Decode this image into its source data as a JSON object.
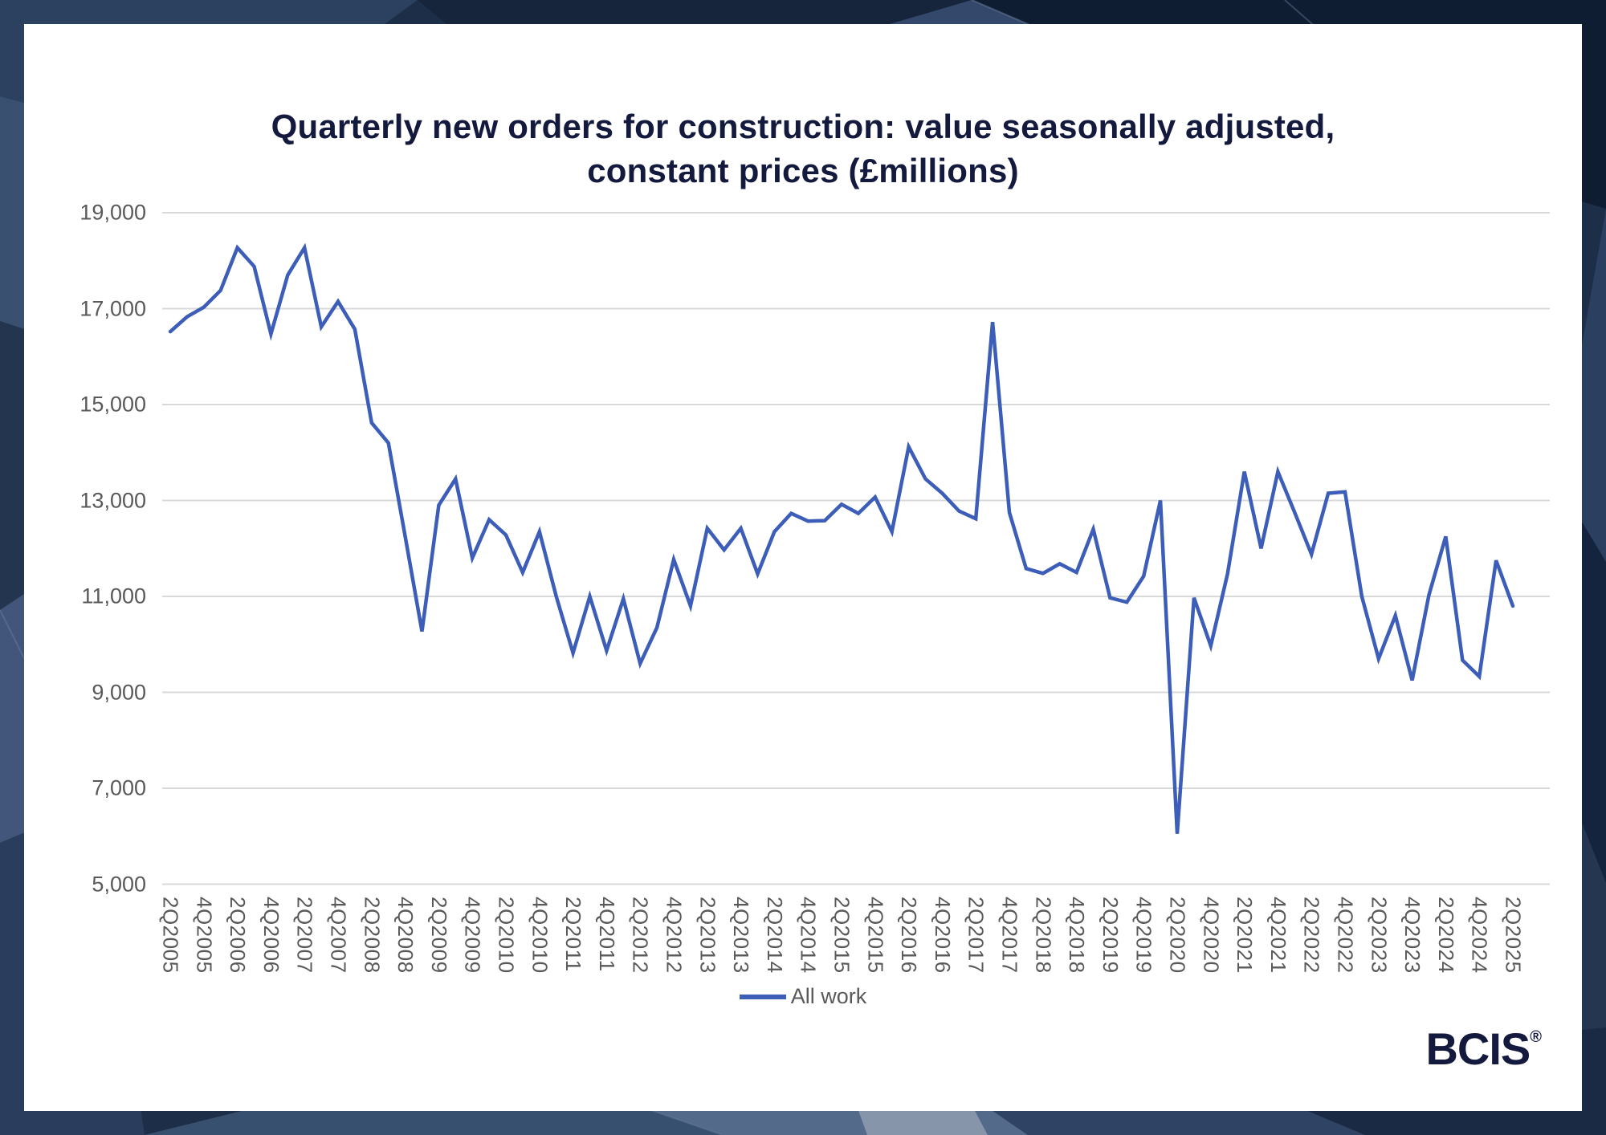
{
  "title": {
    "line1": "Quarterly new orders for construction: value seasonally adjusted,",
    "line2": "constant prices (£millions)"
  },
  "legend": {
    "label": "All work"
  },
  "logo": {
    "text": "BCIS",
    "registered": "®"
  },
  "colors": {
    "line": "#3c5db8",
    "title_text": "#141a3d",
    "axis_text": "#595959",
    "gridline": "#d9d9d9",
    "card_bg": "#ffffff",
    "page_bg": "#1d2e49",
    "logo_text": "#131a3e"
  },
  "chart_data": {
    "type": "line",
    "title": "Quarterly new orders for construction: value seasonally adjusted, constant prices (£millions)",
    "xlabel": "",
    "ylabel": "",
    "ylim": [
      5000,
      19000
    ],
    "ytick_step": 2000,
    "y_tick_labels": [
      "19,000",
      "17,000",
      "15,000",
      "13,000",
      "11,000",
      "9,000",
      "7,000",
      "5,000"
    ],
    "grid": true,
    "legend_position": "bottom-center",
    "tick_every": 2,
    "categories": [
      "2Q2005",
      "3Q2005",
      "4Q2005",
      "1Q2006",
      "2Q2006",
      "3Q2006",
      "4Q2006",
      "1Q2007",
      "2Q2007",
      "3Q2007",
      "4Q2007",
      "1Q2008",
      "2Q2008",
      "3Q2008",
      "4Q2008",
      "1Q2009",
      "2Q2009",
      "3Q2009",
      "4Q2009",
      "1Q2010",
      "2Q2010",
      "3Q2010",
      "4Q2010",
      "1Q2011",
      "2Q2011",
      "3Q2011",
      "4Q2011",
      "1Q2012",
      "2Q2012",
      "3Q2012",
      "4Q2012",
      "1Q2013",
      "2Q2013",
      "3Q2013",
      "4Q2013",
      "1Q2014",
      "2Q2014",
      "3Q2014",
      "4Q2014",
      "1Q2015",
      "2Q2015",
      "3Q2015",
      "4Q2015",
      "1Q2016",
      "2Q2016",
      "3Q2016",
      "4Q2016",
      "1Q2017",
      "2Q2017",
      "3Q2017",
      "4Q2017",
      "1Q2018",
      "2Q2018",
      "3Q2018",
      "4Q2018",
      "1Q2019",
      "2Q2019",
      "3Q2019",
      "4Q2019",
      "1Q2020",
      "2Q2020",
      "3Q2020",
      "4Q2020",
      "1Q2021",
      "2Q2021",
      "3Q2021",
      "4Q2021",
      "1Q2022",
      "2Q2022",
      "3Q2022",
      "4Q2022",
      "1Q2023",
      "2Q2023",
      "3Q2023",
      "4Q2023",
      "1Q2024",
      "2Q2024",
      "3Q2024",
      "4Q2024",
      "1Q2025",
      "2Q2025"
    ],
    "series": [
      {
        "name": "All work",
        "values": [
          16520,
          16830,
          17030,
          17380,
          18270,
          17880,
          16470,
          17700,
          18270,
          16620,
          17150,
          16570,
          14620,
          14200,
          12250,
          10270,
          12900,
          13450,
          11800,
          12600,
          12280,
          11500,
          12350,
          11000,
          9820,
          11000,
          9870,
          10950,
          9600,
          10350,
          11770,
          10800,
          12420,
          11970,
          12420,
          11470,
          12350,
          12730,
          12570,
          12580,
          12920,
          12730,
          13070,
          12350,
          14120,
          13450,
          13150,
          12780,
          12620,
          16720,
          12750,
          11580,
          11480,
          11680,
          11500,
          12400,
          10970,
          10880,
          11420,
          13000,
          6050,
          10970,
          9970,
          11470,
          13600,
          12000,
          13600,
          12750,
          11880,
          13150,
          13180,
          11000,
          9700,
          10600,
          9250,
          11030,
          12250,
          9670,
          9330,
          11750,
          10800
        ]
      }
    ]
  }
}
